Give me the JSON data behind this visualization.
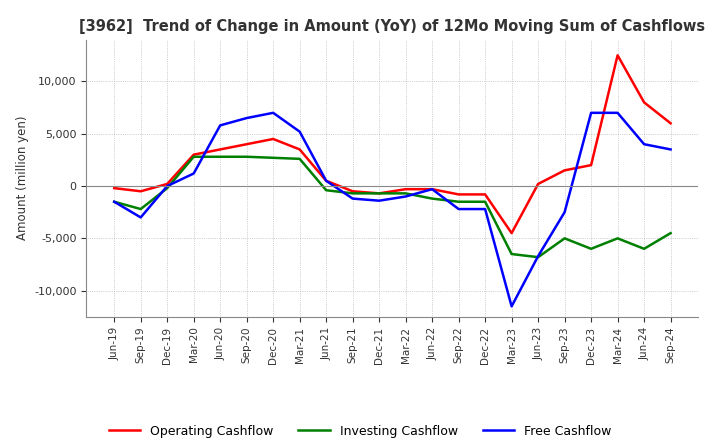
{
  "title": "[3962]  Trend of Change in Amount (YoY) of 12Mo Moving Sum of Cashflows",
  "ylabel": "Amount (million yen)",
  "ylim": [
    -12500,
    14000
  ],
  "yticks": [
    -10000,
    -5000,
    0,
    5000,
    10000
  ],
  "x_labels": [
    "Jun-19",
    "Sep-19",
    "Dec-19",
    "Mar-20",
    "Jun-20",
    "Sep-20",
    "Dec-20",
    "Mar-21",
    "Jun-21",
    "Sep-21",
    "Dec-21",
    "Mar-22",
    "Jun-22",
    "Sep-22",
    "Dec-22",
    "Mar-23",
    "Jun-23",
    "Sep-23",
    "Dec-23",
    "Mar-24",
    "Jun-24",
    "Sep-24"
  ],
  "operating": [
    -200,
    -500,
    200,
    3000,
    3500,
    4000,
    4500,
    3500,
    500,
    -500,
    -700,
    -300,
    -300,
    -800,
    -800,
    -4500,
    200,
    1500,
    2000,
    12500,
    8000,
    6000
  ],
  "investing": [
    -1500,
    -2200,
    -200,
    2800,
    2800,
    2800,
    2700,
    2600,
    -400,
    -700,
    -700,
    -700,
    -1200,
    -1500,
    -1500,
    -6500,
    -6800,
    -5000,
    -6000,
    -5000,
    -6000,
    -4500
  ],
  "free": [
    -1500,
    -3000,
    0,
    1200,
    5800,
    6500,
    7000,
    5200,
    500,
    -1200,
    -1400,
    -1000,
    -300,
    -2200,
    -2200,
    -11500,
    -6700,
    -2500,
    7000,
    7000,
    4000,
    3500
  ],
  "operating_color": "#ff0000",
  "investing_color": "#008000",
  "free_color": "#0000ff",
  "background_color": "#ffffff",
  "grid_color": "#aaaaaa"
}
